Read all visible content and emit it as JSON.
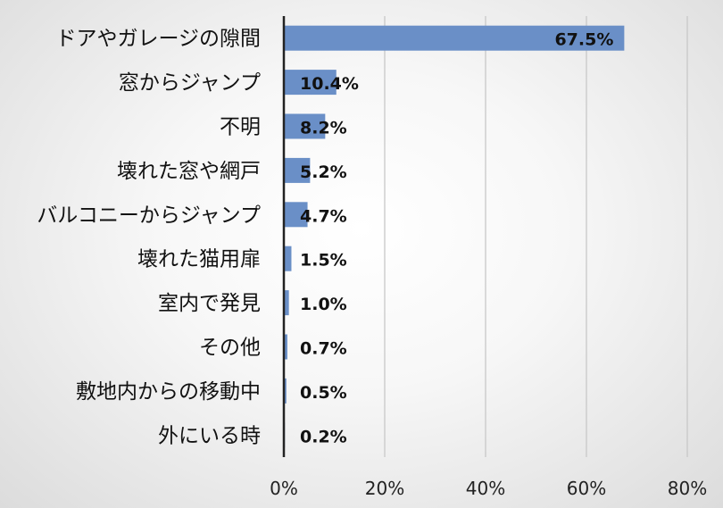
{
  "chart_data": {
    "type": "bar",
    "orientation": "horizontal",
    "categories": [
      "ドアやガレージの隙間",
      "窓からジャンプ",
      "不明",
      "壊れた窓や網戸",
      "バルコニーからジャンプ",
      "壊れた猫用扉",
      "室内で発見",
      "その他",
      "敷地内からの移動中",
      "外にいる時"
    ],
    "values": [
      67.5,
      10.4,
      8.2,
      5.2,
      4.7,
      1.5,
      1.0,
      0.7,
      0.5,
      0.2
    ],
    "value_labels": [
      "67.5%",
      "10.4%",
      "8.2%",
      "5.2%",
      "4.7%",
      "1.5%",
      "1.0%",
      "0.7%",
      "0.5%",
      "0.2%"
    ],
    "xlim": [
      0,
      80
    ],
    "xticks": [
      0,
      20,
      40,
      60,
      80
    ],
    "xtick_labels": [
      "0%",
      "20%",
      "40%",
      "60%",
      "80%"
    ],
    "grid": "vertical",
    "legend": "none",
    "bar_color": "#6a8fc7",
    "axis_color": "#222222",
    "grid_color": "#c8c8c8",
    "title": "",
    "xlabel": "",
    "ylabel": ""
  }
}
